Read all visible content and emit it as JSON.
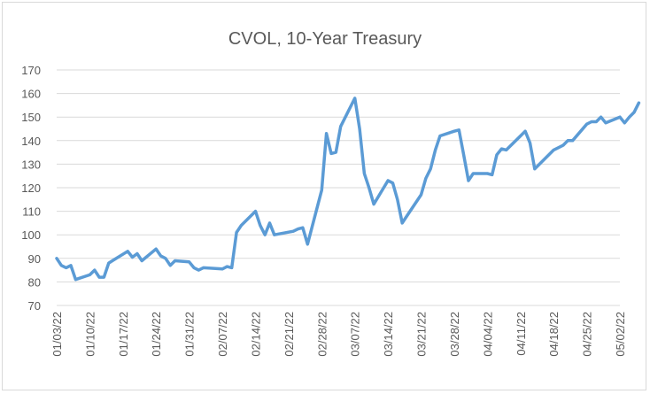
{
  "chart_data": {
    "type": "line",
    "title": "CVOL, 10-Year Treasury",
    "xlabel": "",
    "ylabel": "",
    "ylim": [
      70,
      170
    ],
    "yticks": [
      70,
      80,
      90,
      100,
      110,
      120,
      130,
      140,
      150,
      160,
      170
    ],
    "grid": true,
    "legend": "none",
    "line_color": "#5b9bd5",
    "xticks": [
      "01/03/22",
      "01/10/22",
      "01/17/22",
      "01/24/22",
      "01/31/22",
      "02/07/22",
      "02/14/22",
      "02/21/22",
      "02/28/22",
      "03/07/22",
      "03/14/22",
      "03/21/22",
      "03/28/22",
      "04/04/22",
      "04/11/22",
      "04/18/22",
      "04/25/22",
      "05/02/22"
    ],
    "series": [
      {
        "points": [
          [
            "2022-01-03",
            90
          ],
          [
            "2022-01-04",
            87
          ],
          [
            "2022-01-05",
            86
          ],
          [
            "2022-01-06",
            87
          ],
          [
            "2022-01-07",
            81
          ],
          [
            "2022-01-10",
            83
          ],
          [
            "2022-01-11",
            85
          ],
          [
            "2022-01-12",
            82
          ],
          [
            "2022-01-13",
            82
          ],
          [
            "2022-01-14",
            88
          ],
          [
            "2022-01-18",
            93
          ],
          [
            "2022-01-19",
            90.5
          ],
          [
            "2022-01-20",
            92
          ],
          [
            "2022-01-21",
            89
          ],
          [
            "2022-01-24",
            94
          ],
          [
            "2022-01-25",
            91
          ],
          [
            "2022-01-26",
            90
          ],
          [
            "2022-01-27",
            87
          ],
          [
            "2022-01-28",
            89
          ],
          [
            "2022-01-31",
            88.5
          ],
          [
            "2022-02-01",
            86
          ],
          [
            "2022-02-02",
            85
          ],
          [
            "2022-02-03",
            86
          ],
          [
            "2022-02-07",
            85.5
          ],
          [
            "2022-02-08",
            86.5
          ],
          [
            "2022-02-09",
            86
          ],
          [
            "2022-02-10",
            101
          ],
          [
            "2022-02-11",
            104
          ],
          [
            "2022-02-14",
            110
          ],
          [
            "2022-02-15",
            104
          ],
          [
            "2022-02-16",
            100
          ],
          [
            "2022-02-17",
            105
          ],
          [
            "2022-02-18",
            100
          ],
          [
            "2022-02-22",
            101.5
          ],
          [
            "2022-02-23",
            102.5
          ],
          [
            "2022-02-24",
            103
          ],
          [
            "2022-02-25",
            96
          ],
          [
            "2022-02-28",
            119
          ],
          [
            "2022-03-01",
            143
          ],
          [
            "2022-03-02",
            134.5
          ],
          [
            "2022-03-03",
            135
          ],
          [
            "2022-03-04",
            146
          ],
          [
            "2022-03-07",
            158
          ],
          [
            "2022-03-08",
            145
          ],
          [
            "2022-03-09",
            126
          ],
          [
            "2022-03-10",
            120
          ],
          [
            "2022-03-11",
            113
          ],
          [
            "2022-03-14",
            123
          ],
          [
            "2022-03-15",
            122
          ],
          [
            "2022-03-16",
            115
          ],
          [
            "2022-03-17",
            105
          ],
          [
            "2022-03-18",
            108
          ],
          [
            "2022-03-21",
            117
          ],
          [
            "2022-03-22",
            124
          ],
          [
            "2022-03-23",
            128
          ],
          [
            "2022-03-24",
            136
          ],
          [
            "2022-03-25",
            142
          ],
          [
            "2022-03-28",
            144
          ],
          [
            "2022-03-29",
            144.5
          ],
          [
            "2022-03-30",
            134
          ],
          [
            "2022-03-31",
            123
          ],
          [
            "2022-04-01",
            126
          ],
          [
            "2022-04-04",
            126
          ],
          [
            "2022-04-05",
            125.5
          ],
          [
            "2022-04-06",
            134
          ],
          [
            "2022-04-07",
            136.5
          ],
          [
            "2022-04-08",
            136
          ],
          [
            "2022-04-11",
            142
          ],
          [
            "2022-04-12",
            144
          ],
          [
            "2022-04-13",
            139
          ],
          [
            "2022-04-14",
            128
          ],
          [
            "2022-04-18",
            136
          ],
          [
            "2022-04-19",
            137
          ],
          [
            "2022-04-20",
            138
          ],
          [
            "2022-04-21",
            140
          ],
          [
            "2022-04-22",
            140
          ],
          [
            "2022-04-25",
            147
          ],
          [
            "2022-04-26",
            148
          ],
          [
            "2022-04-27",
            148
          ],
          [
            "2022-04-28",
            150
          ],
          [
            "2022-04-29",
            147.5
          ],
          [
            "2022-05-02",
            150
          ],
          [
            "2022-05-03",
            147.5
          ],
          [
            "2022-05-04",
            150
          ],
          [
            "2022-05-05",
            152
          ],
          [
            "2022-05-06",
            156
          ]
        ]
      }
    ]
  }
}
